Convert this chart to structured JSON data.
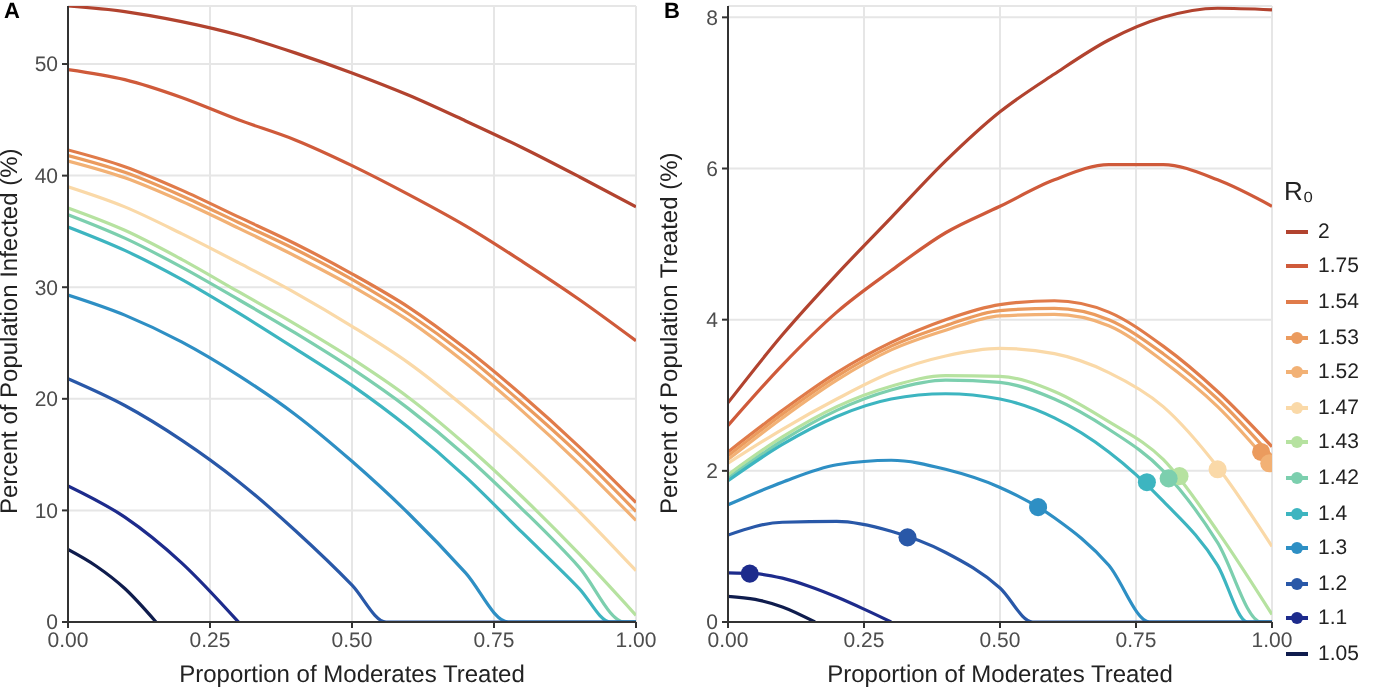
{
  "chart_data": [
    {
      "type": "line",
      "title": "A",
      "xlabel": "Proportion of Moderates Treated",
      "ylabel": "Percent of Population Infected (%)",
      "xlim": [
        0,
        1
      ],
      "xticks": [
        {
          "value": 0,
          "label": "0.00"
        },
        {
          "value": 0.25,
          "label": "0.25"
        },
        {
          "value": 0.5,
          "label": "0.50"
        },
        {
          "value": 0.75,
          "label": "0.75"
        },
        {
          "value": 1,
          "label": "1.00"
        }
      ],
      "ylim": [
        0,
        55.2
      ],
      "yticks": [
        0,
        10,
        20,
        30,
        40,
        50
      ],
      "grid": true,
      "marker": "none",
      "line_style": "solid",
      "series": [
        {
          "color": "#b2432f",
          "x": [
            0,
            0.1,
            0.2,
            0.3,
            0.4,
            0.5,
            0.6,
            0.7,
            0.8,
            0.9,
            1
          ],
          "values": [
            55.2,
            54.7,
            53.8,
            52.6,
            51.0,
            49.2,
            47.2,
            44.9,
            42.5,
            39.9,
            37.2
          ]
        },
        {
          "color": "#cf5a3a",
          "x": [
            0,
            0.1,
            0.2,
            0.3,
            0.4,
            0.5,
            0.6,
            0.7,
            0.8,
            0.9,
            1
          ],
          "values": [
            49.5,
            48.6,
            47.0,
            45.0,
            43.2,
            40.9,
            38.3,
            35.5,
            32.3,
            28.9,
            25.2
          ]
        },
        {
          "color": "#e07b4a",
          "x": [
            0,
            0.1,
            0.2,
            0.3,
            0.4,
            0.5,
            0.6,
            0.7,
            0.8,
            0.9,
            1
          ],
          "values": [
            42.3,
            40.8,
            38.7,
            36.3,
            33.9,
            31.2,
            28.2,
            24.5,
            20.3,
            15.7,
            10.7
          ]
        },
        {
          "color": "#eb9b5e",
          "x": [
            0,
            0.1,
            0.2,
            0.3,
            0.4,
            0.5,
            0.6,
            0.7,
            0.8,
            0.9,
            1
          ],
          "values": [
            41.8,
            40.3,
            38.2,
            35.8,
            33.4,
            30.7,
            27.6,
            23.9,
            19.6,
            15.0,
            9.9
          ]
        },
        {
          "color": "#f2b175",
          "x": [
            0,
            0.1,
            0.2,
            0.3,
            0.4,
            0.5,
            0.6,
            0.7,
            0.8,
            0.9,
            1
          ],
          "values": [
            41.3,
            39.8,
            37.7,
            35.3,
            32.8,
            30.1,
            27.0,
            23.2,
            18.9,
            14.2,
            9.1
          ]
        },
        {
          "color": "#fad9a8",
          "x": [
            0,
            0.1,
            0.2,
            0.3,
            0.4,
            0.5,
            0.6,
            0.7,
            0.8,
            0.9,
            1
          ],
          "values": [
            39.0,
            37.2,
            34.8,
            32.2,
            29.5,
            26.5,
            23.2,
            19.2,
            14.8,
            9.9,
            4.6
          ]
        },
        {
          "color": "#b6e2a0",
          "x": [
            0,
            0.1,
            0.2,
            0.3,
            0.4,
            0.5,
            0.6,
            0.7,
            0.8,
            0.9,
            1
          ],
          "values": [
            37.1,
            35.1,
            32.5,
            29.6,
            26.7,
            23.6,
            20.1,
            15.9,
            11.2,
            6.1,
            0.6
          ]
        },
        {
          "color": "#7ccfae",
          "x": [
            0,
            0.1,
            0.2,
            0.3,
            0.4,
            0.5,
            0.6,
            0.7,
            0.8,
            0.9,
            0.98,
            1
          ],
          "values": [
            36.5,
            34.4,
            31.8,
            28.9,
            25.9,
            22.7,
            19.1,
            14.9,
            10.1,
            4.9,
            0,
            0
          ]
        },
        {
          "color": "#3db5c0",
          "x": [
            0,
            0.1,
            0.2,
            0.3,
            0.4,
            0.5,
            0.6,
            0.7,
            0.8,
            0.9,
            0.955,
            1
          ],
          "values": [
            35.4,
            33.3,
            30.7,
            27.7,
            24.5,
            21.2,
            17.4,
            13.0,
            8.0,
            3.0,
            0,
            0
          ]
        },
        {
          "color": "#2e8fc4",
          "x": [
            0,
            0.1,
            0.2,
            0.3,
            0.4,
            0.5,
            0.6,
            0.7,
            0.775,
            1
          ],
          "values": [
            29.3,
            27.5,
            25.1,
            22.1,
            18.6,
            14.4,
            9.7,
            4.4,
            0,
            0
          ]
        },
        {
          "color": "#2958a8",
          "x": [
            0,
            0.1,
            0.2,
            0.3,
            0.4,
            0.5,
            0.56,
            1
          ],
          "values": [
            21.8,
            19.4,
            16.3,
            12.6,
            8.2,
            3.3,
            0,
            0
          ]
        },
        {
          "color": "#1d2b8c",
          "x": [
            0,
            0.1,
            0.2,
            0.3
          ],
          "values": [
            12.2,
            9.4,
            5.3,
            0
          ]
        },
        {
          "color": "#0f1c4d",
          "x": [
            0,
            0.05,
            0.1,
            0.155
          ],
          "values": [
            6.5,
            5.0,
            3.0,
            0
          ]
        }
      ]
    },
    {
      "type": "line",
      "title": "B",
      "xlabel": "Proportion of Moderates Treated",
      "ylabel": "Percent of Population Treated (%)",
      "legend_title": "R₀",
      "legend": "right",
      "xlim": [
        0,
        1
      ],
      "xticks": [
        {
          "value": 0,
          "label": "0.00"
        },
        {
          "value": 0.25,
          "label": "0.25"
        },
        {
          "value": 0.5,
          "label": "0.50"
        },
        {
          "value": 0.75,
          "label": "0.75"
        },
        {
          "value": 1,
          "label": "1.00"
        }
      ],
      "ylim": [
        0,
        8.15
      ],
      "yticks": [
        0,
        2,
        4,
        6,
        8
      ],
      "grid": true,
      "marker": "none",
      "line_style": "solid",
      "series": [
        {
          "name": "2",
          "color": "#b2432f",
          "x": [
            0,
            0.1,
            0.2,
            0.3,
            0.4,
            0.5,
            0.6,
            0.7,
            0.8,
            0.9,
            1
          ],
          "values": [
            2.9,
            3.8,
            4.6,
            5.35,
            6.1,
            6.75,
            7.25,
            7.7,
            8.0,
            8.12,
            8.1
          ]
        },
        {
          "name": "1.75",
          "color": "#cf5a3a",
          "x": [
            0,
            0.1,
            0.2,
            0.3,
            0.4,
            0.5,
            0.6,
            0.7,
            0.8,
            0.9,
            1
          ],
          "values": [
            2.6,
            3.4,
            4.1,
            4.65,
            5.15,
            5.5,
            5.85,
            6.05,
            6.05,
            5.85,
            5.5
          ]
        },
        {
          "name": "1.54",
          "color": "#e07b4a",
          "x": [
            0,
            0.1,
            0.2,
            0.3,
            0.4,
            0.5,
            0.6,
            0.7,
            0.8,
            0.9,
            1
          ],
          "values": [
            2.25,
            2.8,
            3.3,
            3.7,
            4.0,
            4.2,
            4.25,
            4.1,
            3.65,
            3.05,
            2.32
          ]
        },
        {
          "name": "1.53",
          "color": "#eb9b5e",
          "x": [
            0,
            0.1,
            0.2,
            0.3,
            0.4,
            0.5,
            0.6,
            0.7,
            0.8,
            0.9,
            1
          ],
          "values": [
            2.2,
            2.75,
            3.25,
            3.65,
            3.92,
            4.12,
            4.15,
            4.0,
            3.55,
            2.95,
            2.19
          ]
        },
        {
          "name": "1.52",
          "color": "#f2b175",
          "x": [
            0,
            0.1,
            0.2,
            0.3,
            0.4,
            0.5,
            0.6,
            0.7,
            0.8,
            0.9,
            1
          ],
          "values": [
            2.15,
            2.7,
            3.2,
            3.6,
            3.86,
            4.05,
            4.07,
            3.92,
            3.45,
            2.85,
            2.06
          ]
        },
        {
          "name": "1.47",
          "color": "#fad9a8",
          "x": [
            0,
            0.1,
            0.2,
            0.3,
            0.4,
            0.5,
            0.6,
            0.7,
            0.8,
            0.9,
            1
          ],
          "values": [
            2.1,
            2.55,
            2.95,
            3.3,
            3.52,
            3.62,
            3.55,
            3.3,
            2.85,
            2.05,
            1.0
          ]
        },
        {
          "name": "1.43",
          "color": "#b6e2a0",
          "x": [
            0,
            0.1,
            0.2,
            0.3,
            0.4,
            0.5,
            0.6,
            0.7,
            0.8,
            0.9,
            1
          ],
          "values": [
            1.95,
            2.45,
            2.85,
            3.12,
            3.26,
            3.25,
            3.05,
            2.65,
            2.15,
            1.2,
            0.1
          ]
        },
        {
          "name": "1.42",
          "color": "#7ccfae",
          "x": [
            0,
            0.1,
            0.2,
            0.3,
            0.4,
            0.5,
            0.6,
            0.7,
            0.8,
            0.9,
            0.98,
            1
          ],
          "values": [
            1.9,
            2.4,
            2.8,
            3.07,
            3.2,
            3.17,
            2.95,
            2.55,
            2.0,
            1.05,
            0,
            0
          ]
        },
        {
          "name": "1.4",
          "color": "#3db5c0",
          "x": [
            0,
            0.1,
            0.2,
            0.3,
            0.4,
            0.5,
            0.6,
            0.7,
            0.8,
            0.9,
            0.955,
            1
          ],
          "values": [
            1.87,
            2.35,
            2.72,
            2.95,
            3.02,
            2.95,
            2.7,
            2.25,
            1.6,
            0.75,
            0,
            0
          ]
        },
        {
          "name": "1.3",
          "color": "#2e8fc4",
          "x": [
            0,
            0.1,
            0.2,
            0.3,
            0.4,
            0.5,
            0.6,
            0.7,
            0.775,
            1
          ],
          "values": [
            1.55,
            1.85,
            2.08,
            2.14,
            2.02,
            1.78,
            1.38,
            0.75,
            0,
            0
          ]
        },
        {
          "name": "1.2",
          "color": "#2958a8",
          "x": [
            0,
            0.1,
            0.2,
            0.3,
            0.4,
            0.5,
            0.56,
            1
          ],
          "values": [
            1.15,
            1.32,
            1.33,
            1.2,
            0.92,
            0.45,
            0,
            0
          ]
        },
        {
          "name": "1.1",
          "color": "#1d2b8c",
          "x": [
            0,
            0.05,
            0.1,
            0.15,
            0.2,
            0.25,
            0.3
          ],
          "values": [
            0.65,
            0.64,
            0.58,
            0.47,
            0.33,
            0.17,
            0
          ]
        },
        {
          "name": "1.05",
          "color": "#0f1c4d",
          "x": [
            0,
            0.05,
            0.1,
            0.16
          ],
          "values": [
            0.34,
            0.3,
            0.2,
            0
          ]
        },
        {
          "type": "scatter",
          "marker": "circle",
          "color": "#eb9b5e",
          "x": [
            0.98
          ],
          "values": [
            2.25
          ]
        },
        {
          "type": "scatter",
          "marker": "circle",
          "color": "#f2b175",
          "x": [
            0.995
          ],
          "values": [
            2.1
          ]
        },
        {
          "type": "scatter",
          "marker": "circle",
          "color": "#fad9a8",
          "x": [
            0.9
          ],
          "values": [
            2.02
          ]
        },
        {
          "type": "scatter",
          "marker": "circle",
          "color": "#b6e2a0",
          "x": [
            0.83
          ],
          "values": [
            1.93
          ]
        },
        {
          "type": "scatter",
          "marker": "circle",
          "color": "#7ccfae",
          "x": [
            0.81
          ],
          "values": [
            1.9
          ]
        },
        {
          "type": "scatter",
          "marker": "circle",
          "color": "#3db5c0",
          "x": [
            0.77
          ],
          "values": [
            1.85
          ]
        },
        {
          "type": "scatter",
          "marker": "circle",
          "color": "#2e8fc4",
          "x": [
            0.57
          ],
          "values": [
            1.52
          ]
        },
        {
          "type": "scatter",
          "marker": "circle",
          "color": "#2958a8",
          "x": [
            0.33
          ],
          "values": [
            1.12
          ]
        },
        {
          "type": "scatter",
          "marker": "circle",
          "color": "#1d2b8c",
          "x": [
            0.04
          ],
          "values": [
            0.64
          ]
        }
      ]
    }
  ]
}
